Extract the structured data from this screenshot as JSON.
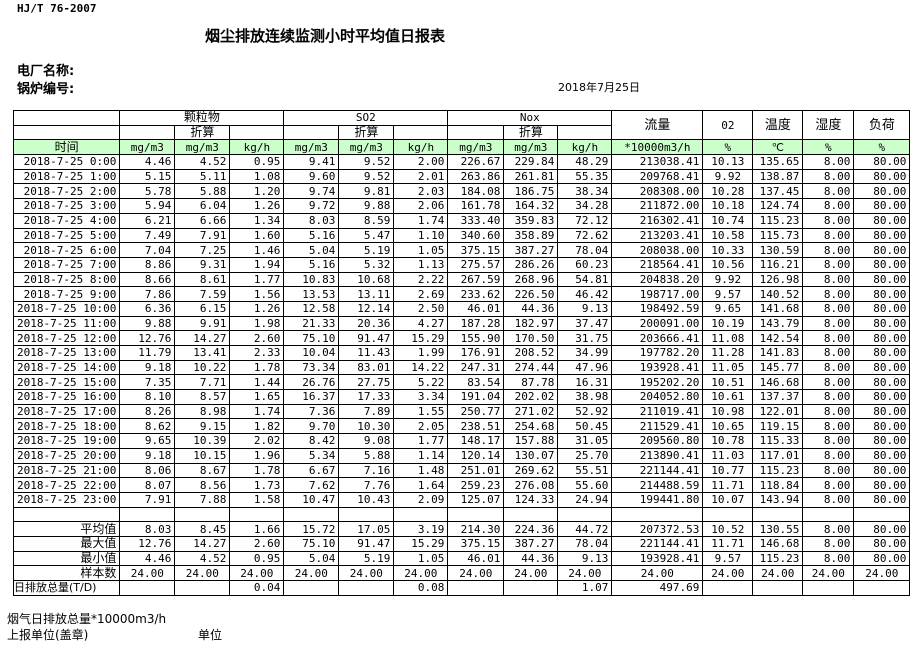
{
  "standard": "HJ/T  76-2007",
  "title": "烟尘排放连续监测小时平均值日报表",
  "plant_label": "电厂名称:",
  "boiler_label": "锅炉编号:",
  "date": "2018年7月25日",
  "header": {
    "groups": [
      "颗粒物",
      "SO2",
      "Nox"
    ],
    "converted": "折算",
    "flow": "流量",
    "o2": "02",
    "temp": "温度",
    "humidity": "湿度",
    "load": "负荷",
    "time": "时间",
    "units": [
      "mg/m3",
      "mg/m3",
      "kg/h",
      "mg/m3",
      "mg/m3",
      "kg/h",
      "mg/m3",
      "mg/m3",
      "kg/h",
      "*10000m3/h",
      "%",
      "℃",
      "%",
      "%"
    ]
  },
  "rows": [
    [
      "2018-7-25 0:00",
      "4.46",
      "4.52",
      "0.95",
      "9.41",
      "9.52",
      "2.00",
      "226.67",
      "229.84",
      "48.29",
      "213038.41",
      "10.13",
      "135.65",
      "8.00",
      "80.00"
    ],
    [
      "2018-7-25 1:00",
      "5.15",
      "5.11",
      "1.08",
      "9.60",
      "9.52",
      "2.01",
      "263.86",
      "261.81",
      "55.35",
      "209768.41",
      "9.92",
      "138.87",
      "8.00",
      "80.00"
    ],
    [
      "2018-7-25 2:00",
      "5.78",
      "5.88",
      "1.20",
      "9.74",
      "9.81",
      "2.03",
      "184.08",
      "186.75",
      "38.34",
      "208308.00",
      "10.28",
      "137.45",
      "8.00",
      "80.00"
    ],
    [
      "2018-7-25 3:00",
      "5.94",
      "6.04",
      "1.26",
      "9.72",
      "9.88",
      "2.06",
      "161.78",
      "164.32",
      "34.28",
      "211872.00",
      "10.18",
      "124.74",
      "8.00",
      "80.00"
    ],
    [
      "2018-7-25 4:00",
      "6.21",
      "6.66",
      "1.34",
      "8.03",
      "8.59",
      "1.74",
      "333.40",
      "359.83",
      "72.12",
      "216302.41",
      "10.74",
      "115.23",
      "8.00",
      "80.00"
    ],
    [
      "2018-7-25 5:00",
      "7.49",
      "7.91",
      "1.60",
      "5.16",
      "5.47",
      "1.10",
      "340.60",
      "358.89",
      "72.62",
      "213203.41",
      "10.58",
      "115.73",
      "8.00",
      "80.00"
    ],
    [
      "2018-7-25 6:00",
      "7.04",
      "7.25",
      "1.46",
      "5.04",
      "5.19",
      "1.05",
      "375.15",
      "387.27",
      "78.04",
      "208038.00",
      "10.33",
      "130.59",
      "8.00",
      "80.00"
    ],
    [
      "2018-7-25 7:00",
      "8.86",
      "9.31",
      "1.94",
      "5.16",
      "5.32",
      "1.13",
      "275.57",
      "286.26",
      "60.23",
      "218564.41",
      "10.56",
      "116.21",
      "8.00",
      "80.00"
    ],
    [
      "2018-7-25 8:00",
      "8.66",
      "8.61",
      "1.77",
      "10.83",
      "10.68",
      "2.22",
      "267.59",
      "268.96",
      "54.81",
      "204838.20",
      "9.92",
      "126.98",
      "8.00",
      "80.00"
    ],
    [
      "2018-7-25 9:00",
      "7.86",
      "7.59",
      "1.56",
      "13.53",
      "13.11",
      "2.69",
      "233.62",
      "226.50",
      "46.42",
      "198717.00",
      "9.57",
      "140.52",
      "8.00",
      "80.00"
    ],
    [
      "2018-7-25 10:00",
      "6.36",
      "6.15",
      "1.26",
      "12.58",
      "12.14",
      "2.50",
      "46.01",
      "44.36",
      "9.13",
      "198492.59",
      "9.65",
      "141.68",
      "8.00",
      "80.00"
    ],
    [
      "2018-7-25 11:00",
      "9.88",
      "9.91",
      "1.98",
      "21.33",
      "20.36",
      "4.27",
      "187.28",
      "182.97",
      "37.47",
      "200091.00",
      "10.19",
      "143.79",
      "8.00",
      "80.00"
    ],
    [
      "2018-7-25 12:00",
      "12.76",
      "14.27",
      "2.60",
      "75.10",
      "91.47",
      "15.29",
      "155.90",
      "170.50",
      "31.75",
      "203666.41",
      "11.08",
      "142.54",
      "8.00",
      "80.00"
    ],
    [
      "2018-7-25 13:00",
      "11.79",
      "13.41",
      "2.33",
      "10.04",
      "11.43",
      "1.99",
      "176.91",
      "208.52",
      "34.99",
      "197782.20",
      "11.28",
      "141.83",
      "8.00",
      "80.00"
    ],
    [
      "2018-7-25 14:00",
      "9.18",
      "10.22",
      "1.78",
      "73.34",
      "83.01",
      "14.22",
      "247.31",
      "274.44",
      "47.96",
      "193928.41",
      "11.05",
      "145.77",
      "8.00",
      "80.00"
    ],
    [
      "2018-7-25 15:00",
      "7.35",
      "7.71",
      "1.44",
      "26.76",
      "27.75",
      "5.22",
      "83.54",
      "87.78",
      "16.31",
      "195202.20",
      "10.51",
      "146.68",
      "8.00",
      "80.00"
    ],
    [
      "2018-7-25 16:00",
      "8.10",
      "8.57",
      "1.65",
      "16.37",
      "17.33",
      "3.34",
      "191.04",
      "202.02",
      "38.98",
      "204052.80",
      "10.61",
      "137.37",
      "8.00",
      "80.00"
    ],
    [
      "2018-7-25 17:00",
      "8.26",
      "8.98",
      "1.74",
      "7.36",
      "7.89",
      "1.55",
      "250.77",
      "271.02",
      "52.92",
      "211019.41",
      "10.98",
      "122.01",
      "8.00",
      "80.00"
    ],
    [
      "2018-7-25 18:00",
      "8.62",
      "9.15",
      "1.82",
      "9.70",
      "10.30",
      "2.05",
      "238.51",
      "254.68",
      "50.45",
      "211529.41",
      "10.65",
      "119.15",
      "8.00",
      "80.00"
    ],
    [
      "2018-7-25 19:00",
      "9.65",
      "10.39",
      "2.02",
      "8.42",
      "9.08",
      "1.77",
      "148.17",
      "157.88",
      "31.05",
      "209560.80",
      "10.78",
      "115.33",
      "8.00",
      "80.00"
    ],
    [
      "2018-7-25 20:00",
      "9.18",
      "10.15",
      "1.96",
      "5.34",
      "5.88",
      "1.14",
      "120.14",
      "130.07",
      "25.70",
      "213890.41",
      "11.03",
      "117.01",
      "8.00",
      "80.00"
    ],
    [
      "2018-7-25 21:00",
      "8.06",
      "8.67",
      "1.78",
      "6.67",
      "7.16",
      "1.48",
      "251.01",
      "269.62",
      "55.51",
      "221144.41",
      "10.77",
      "115.23",
      "8.00",
      "80.00"
    ],
    [
      "2018-7-25 22:00",
      "8.07",
      "8.56",
      "1.73",
      "7.62",
      "7.76",
      "1.64",
      "259.23",
      "276.08",
      "55.60",
      "214488.59",
      "11.71",
      "118.84",
      "8.00",
      "80.00"
    ],
    [
      "2018-7-25 23:00",
      "7.91",
      "7.88",
      "1.58",
      "10.47",
      "10.43",
      "2.09",
      "125.07",
      "124.33",
      "24.94",
      "199441.80",
      "10.07",
      "143.94",
      "8.00",
      "80.00"
    ]
  ],
  "stats": [
    [
      "平均值",
      "8.03",
      "8.45",
      "1.66",
      "15.72",
      "17.05",
      "3.19",
      "214.30",
      "224.36",
      "44.72",
      "207372.53",
      "10.52",
      "130.55",
      "8.00",
      "80.00"
    ],
    [
      "最大值",
      "12.76",
      "14.27",
      "2.60",
      "75.10",
      "91.47",
      "15.29",
      "375.15",
      "387.27",
      "78.04",
      "221144.41",
      "11.71",
      "146.68",
      "8.00",
      "80.00"
    ],
    [
      "最小值",
      "4.46",
      "4.52",
      "0.95",
      "5.04",
      "5.19",
      "1.05",
      "46.01",
      "44.36",
      "9.13",
      "193928.41",
      "9.57",
      "115.23",
      "8.00",
      "80.00"
    ],
    [
      "样本数",
      "24.00",
      "24.00",
      "24.00",
      "24.00",
      "24.00",
      "24.00",
      "24.00",
      "24.00",
      "24.00",
      "24.00",
      "24.00",
      "24.00",
      "24.00",
      "24.00"
    ],
    [
      "日排放总量(T/D)",
      "",
      "",
      "0.04",
      "",
      "",
      "0.08",
      "",
      "",
      "1.07",
      "497.69",
      "",
      "",
      "",
      ""
    ]
  ],
  "footer": {
    "flue_gas_total": "烟气日排放总量*10000m3/h",
    "reporting_unit": "上报单位(盖章)",
    "unit": "单位"
  }
}
